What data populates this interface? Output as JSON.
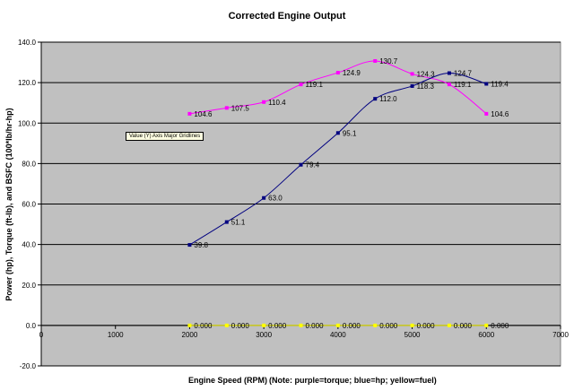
{
  "chart_data": {
    "type": "line",
    "title": "Corrected Engine Output",
    "xlabel": "Engine Speed (RPM)",
    "ylabel": "Power (hp), Torque (ft-lb), and BSFC (100*lb/hr-hp)",
    "note": "(Note: purple=torque; blue=hp; yellow=fuel)",
    "xlim": [
      0,
      7000
    ],
    "ylim": [
      -20,
      140
    ],
    "x_ticks": [
      0,
      1000,
      2000,
      3000,
      4000,
      5000,
      6000,
      7000
    ],
    "y_ticks": [
      -20,
      0,
      20,
      40,
      60,
      80,
      100,
      120,
      140
    ],
    "grid": "horizontal major gridlines",
    "tooltip": "Value (Y) Axis Major Gridlines",
    "plot_background": "#c0c0c0",
    "series": [
      {
        "key": "torque",
        "color": "#ff00ff",
        "x": [
          2000,
          2500,
          3000,
          3500,
          4000,
          4500,
          5000,
          5500,
          6000
        ],
        "values": [
          104.6,
          107.5,
          110.4,
          119.1,
          124.9,
          130.7,
          124.3,
          119.1,
          104.6
        ],
        "labels": [
          "104.6",
          "107.5",
          "110.4",
          "119.1",
          "124.9",
          "130.7",
          "124.3",
          "119.1",
          "104.6"
        ]
      },
      {
        "key": "hp",
        "color": "#000080",
        "x": [
          2000,
          2500,
          3000,
          3500,
          4000,
          4500,
          5000,
          5500,
          6000
        ],
        "values": [
          39.8,
          51.1,
          63.0,
          79.4,
          95.1,
          112.0,
          118.3,
          124.7,
          119.4
        ],
        "labels": [
          "39.8",
          "51.1",
          "63.0",
          "79.4",
          "95.1",
          "112.0",
          "118.3",
          "124.7",
          "119.4"
        ]
      },
      {
        "key": "fuel",
        "color": "#ffff00",
        "x": [
          2000,
          2500,
          3000,
          3500,
          4000,
          4500,
          5000,
          5500,
          6000
        ],
        "values": [
          0,
          0,
          0,
          0,
          0,
          0,
          0,
          0,
          0
        ],
        "labels": [
          "0.000",
          "0.000",
          "0.000",
          "0.000",
          "0.000",
          "0.000",
          "0.000",
          "0.000",
          "0.000"
        ]
      }
    ]
  }
}
